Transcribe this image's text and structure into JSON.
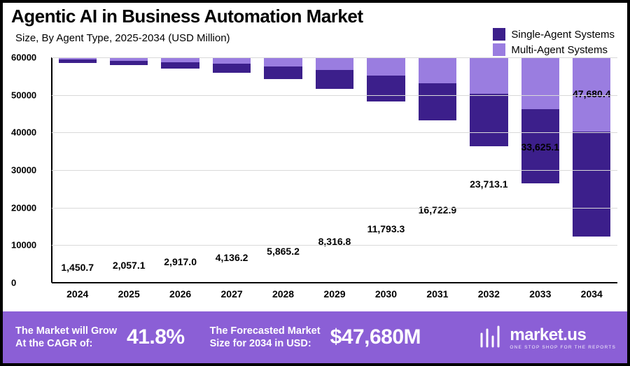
{
  "title": "Agentic AI in Business Automation Market",
  "subtitle": "Size, By Agent Type, 2025-2034 (USD Million)",
  "legend": [
    {
      "label": "Single-Agent Systems",
      "color": "#3c1f8b"
    },
    {
      "label": "Multi-Agent Systems",
      "color": "#9a7de0"
    }
  ],
  "chart": {
    "type": "stacked-bar",
    "ylim": [
      0,
      60000
    ],
    "ytick_step": 10000,
    "yticks": [
      0,
      10000,
      20000,
      30000,
      40000,
      50000,
      60000
    ],
    "grid_color": "#d9d9d9",
    "axis_color": "#000000",
    "background_color": "#ffffff",
    "bar_width": 0.74,
    "label_fontsize": 14,
    "tick_fontsize": 13,
    "categories": [
      "2024",
      "2025",
      "2026",
      "2027",
      "2028",
      "2029",
      "2030",
      "2031",
      "2032",
      "2033",
      "2034"
    ],
    "total_labels": [
      "1,450.7",
      "2,057.1",
      "2,917.0",
      "4,136.2",
      "5,865.2",
      "8,316.8",
      "11,793.3",
      "16,722.9",
      "23,713.1",
      "33,625.1",
      "47,680.4"
    ],
    "series": [
      {
        "name": "Single-Agent Systems",
        "color": "#3c1f8b",
        "values": [
          850,
          1200,
          1700,
          2450,
          3450,
          4900,
          6950,
          9850,
          13950,
          19750,
          27900
        ]
      },
      {
        "name": "Multi-Agent Systems",
        "color": "#9a7de0",
        "values": [
          600.7,
          857.1,
          1217.0,
          1686.2,
          2415.2,
          3416.8,
          4843.3,
          6872.9,
          9763.1,
          13875.1,
          19780.4
        ]
      }
    ]
  },
  "footer": {
    "bg_color": "#8b5fd6",
    "cagr_label_line1": "The Market will Grow",
    "cagr_label_line2": "At the CAGR of:",
    "cagr_value": "41.8%",
    "forecast_label_line1": "The Forecasted Market",
    "forecast_label_line2": "Size for 2034 in USD:",
    "forecast_value": "$47,680M",
    "brand_name": "market.us",
    "brand_tagline": "ONE STOP SHOP FOR THE REPORTS"
  }
}
